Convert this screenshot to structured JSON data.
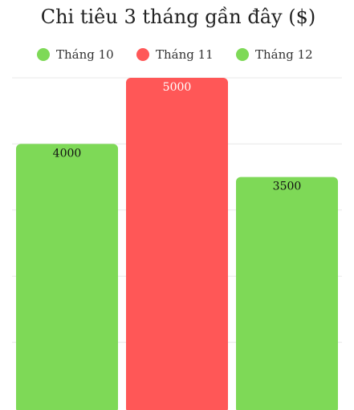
{
  "chart_data": {
    "type": "bar",
    "title": "Chi tiêu 3 tháng gần đây ($)",
    "categories": [
      "Tháng 10",
      "Tháng 11",
      "Tháng 12"
    ],
    "values": [
      4000,
      5000,
      3500
    ],
    "colors": [
      "#7ed957",
      "#ff5757",
      "#7ed957"
    ],
    "label_colors": [
      "#111111",
      "#ffffff",
      "#111111"
    ],
    "legend": [
      {
        "label": "Tháng 10",
        "color": "#7ed957"
      },
      {
        "label": "Tháng 11",
        "color": "#ff5757"
      },
      {
        "label": "Tháng 12",
        "color": "#7ed957"
      }
    ],
    "legend_position": "top",
    "ylim": [
      0,
      5000
    ],
    "grid": true,
    "xlabel": "",
    "ylabel": ""
  }
}
